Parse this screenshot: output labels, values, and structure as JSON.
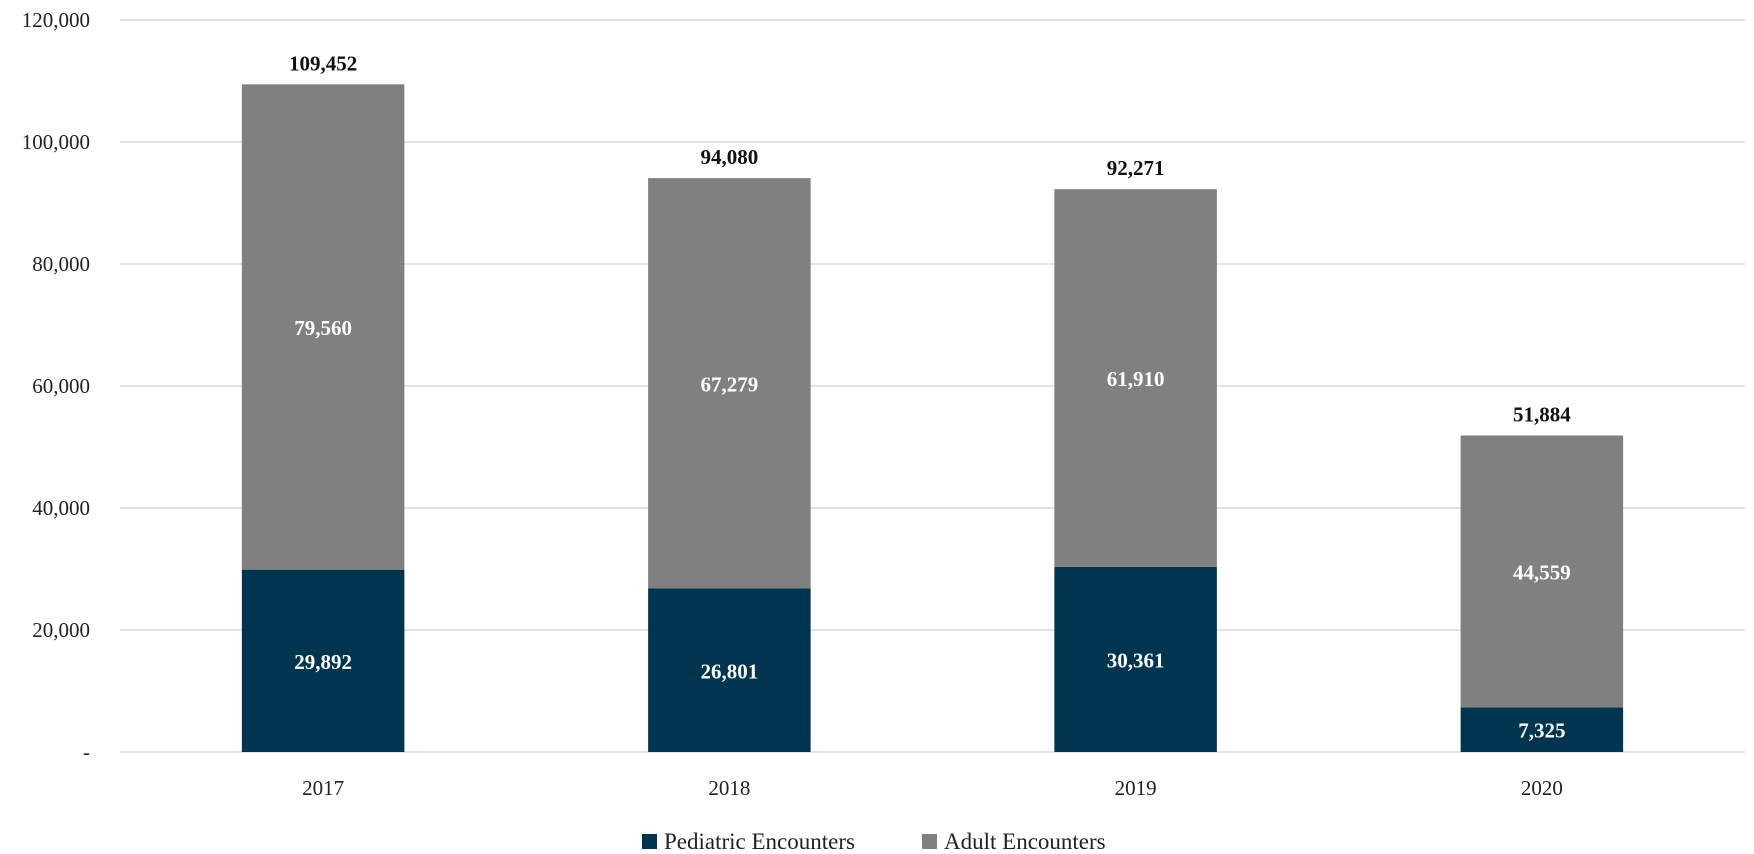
{
  "chart_data": {
    "type": "bar",
    "stacked": true,
    "categories": [
      "2017",
      "2018",
      "2019",
      "2020"
    ],
    "series": [
      {
        "name": "Pediatric Encounters",
        "values": [
          29892,
          26801,
          30361,
          7325
        ],
        "color": "#003550"
      },
      {
        "name": "Adult Encounters",
        "values": [
          79560,
          67279,
          61910,
          44559
        ],
        "color": "#808080"
      }
    ],
    "totals": [
      109452,
      94080,
      92271,
      51884
    ],
    "ylim": [
      0,
      120000
    ],
    "yticks": [
      0,
      20000,
      40000,
      60000,
      80000,
      100000,
      120000
    ],
    "ytick_labels": [
      "-",
      "20,000",
      "40,000",
      "60,000",
      "80,000",
      "100,000",
      "120,000"
    ],
    "grid": true,
    "legend_position": "bottom",
    "title": "",
    "xlabel": "",
    "ylabel": ""
  }
}
